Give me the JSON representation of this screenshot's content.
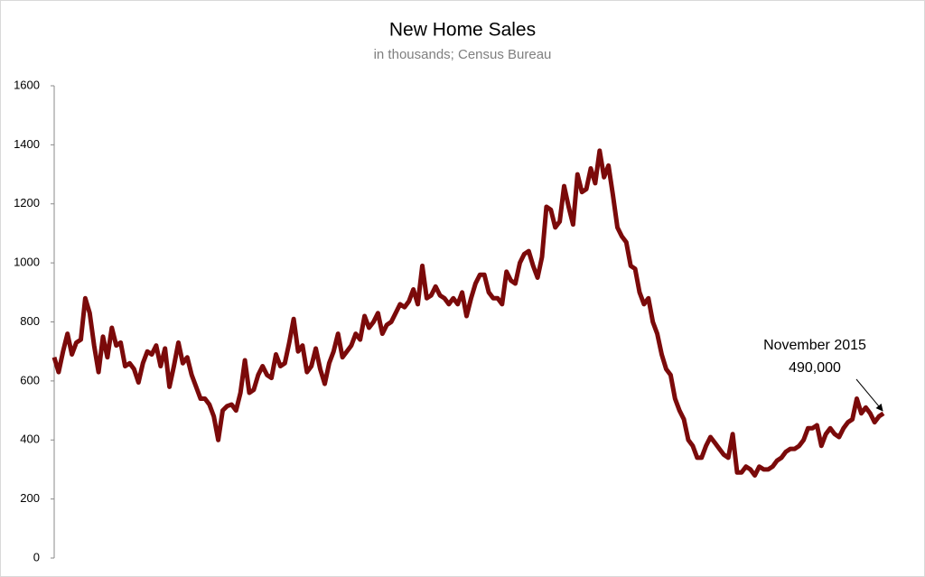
{
  "chart_data": {
    "type": "line",
    "title": "New Home Sales",
    "subtitle": "in thousands; Census Bureau",
    "ylim": [
      0,
      1600
    ],
    "yticks": [
      0,
      200,
      400,
      600,
      800,
      1000,
      1200,
      1400,
      1600
    ],
    "grid": false,
    "series": [
      {
        "name": "New Home Sales",
        "color": "#7b0a0a",
        "values": [
          680,
          630,
          700,
          760,
          690,
          730,
          740,
          880,
          830,
          720,
          630,
          750,
          680,
          780,
          720,
          730,
          650,
          660,
          640,
          595,
          660,
          700,
          690,
          720,
          650,
          710,
          580,
          650,
          730,
          660,
          680,
          620,
          580,
          540,
          540,
          520,
          480,
          400,
          500,
          515,
          520,
          500,
          560,
          670,
          560,
          570,
          620,
          650,
          620,
          610,
          690,
          650,
          660,
          730,
          810,
          700,
          720,
          630,
          650,
          710,
          640,
          590,
          660,
          700,
          760,
          680,
          700,
          720,
          760,
          740,
          820,
          780,
          800,
          830,
          760,
          790,
          800,
          830,
          860,
          850,
          870,
          910,
          860,
          990,
          880,
          890,
          920,
          890,
          880,
          860,
          880,
          860,
          900,
          820,
          880,
          930,
          960,
          960,
          900,
          880,
          880,
          860,
          970,
          940,
          930,
          1000,
          1030,
          1040,
          990,
          950,
          1020,
          1190,
          1180,
          1120,
          1140,
          1260,
          1190,
          1130,
          1300,
          1240,
          1250,
          1320,
          1270,
          1380,
          1290,
          1330,
          1230,
          1120,
          1090,
          1070,
          990,
          980,
          900,
          860,
          880,
          800,
          760,
          690,
          640,
          620,
          540,
          500,
          470,
          400,
          380,
          340,
          340,
          380,
          410,
          390,
          370,
          350,
          340,
          420,
          290,
          290,
          310,
          300,
          280,
          310,
          300,
          300,
          310,
          330,
          340,
          360,
          370,
          370,
          380,
          400,
          440,
          440,
          450,
          380,
          420,
          440,
          420,
          410,
          440,
          460,
          470,
          540,
          490,
          510,
          490,
          460,
          480,
          490
        ]
      }
    ],
    "annotation": {
      "lines": [
        "November 2015",
        "490,000"
      ]
    }
  }
}
